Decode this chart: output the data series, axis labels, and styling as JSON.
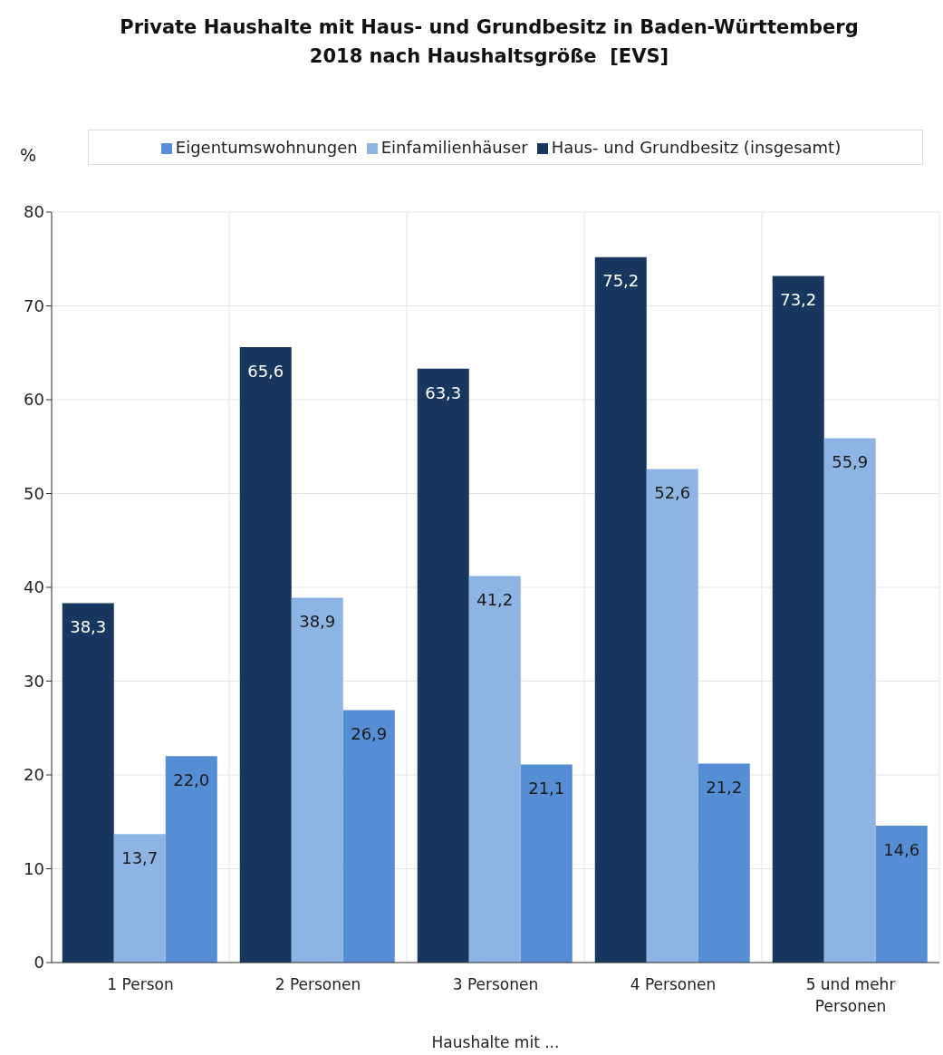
{
  "chart_data": {
    "type": "bar",
    "title": "Private Haushalte mit Haus- und Grundbesitz in Baden-Württemberg\n2018 nach Haushaltsgröße  [EVS]",
    "ylabel": "%",
    "xlabel": "Haushalte mit ...",
    "categories": [
      "1 Person",
      "2 Personen",
      "3 Personen",
      "4 Personen",
      "5 und mehr Personen"
    ],
    "series": [
      {
        "name": "Haus- und Grundbesitz (insgesamt)",
        "color": "#17375e",
        "values": [
          38.3,
          65.6,
          63.3,
          75.2,
          73.2
        ],
        "value_labels": [
          "38,3",
          "65,6",
          "63,3",
          "75,2",
          "73,2"
        ]
      },
      {
        "name": "Einfamilienhäuser",
        "color": "#8db4e2",
        "values": [
          13.7,
          38.9,
          41.2,
          52.6,
          55.9
        ],
        "value_labels": [
          "13,7",
          "38,9",
          "41,2",
          "52,6",
          "55,9"
        ]
      },
      {
        "name": "Eigentumswohnungen",
        "color": "#558ed5",
        "values": [
          22.0,
          26.9,
          21.1,
          21.2,
          14.6
        ],
        "value_labels": [
          "22,0",
          "26,9",
          "21,1",
          "21,2",
          "14,6"
        ]
      }
    ],
    "ylim": [
      0,
      80
    ],
    "yticks": [
      0,
      10,
      20,
      30,
      40,
      50,
      60,
      70,
      80
    ],
    "grid": true,
    "legend": "top"
  }
}
